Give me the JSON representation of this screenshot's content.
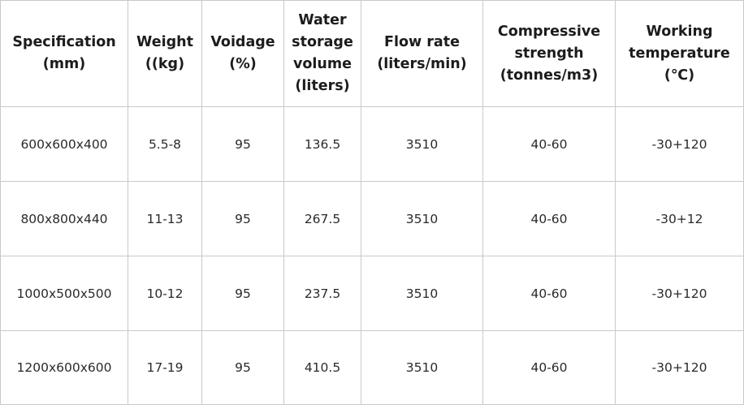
{
  "table": {
    "headers": [
      [
        "Specification",
        "(mm)"
      ],
      [
        "Weight",
        "((kg)"
      ],
      [
        "Voidage",
        "(%)"
      ],
      [
        "Water",
        "storage",
        "volume",
        "(liters)"
      ],
      [
        "Flow rate",
        "(liters/min)"
      ],
      [
        "Compressive",
        "strength",
        "(tonnes/m3)"
      ],
      [
        "Working",
        "temperature",
        "(℃)"
      ]
    ],
    "rows": [
      [
        "600x600x400",
        "5.5-8",
        "95",
        "136.5",
        "3510",
        "40-60",
        "-30+120"
      ],
      [
        "800x800x440",
        "11-13",
        "95",
        "267.5",
        "3510",
        "40-60",
        "-30+12"
      ],
      [
        "1000x500x500",
        "10-12",
        "95",
        "237.5",
        "3510",
        "40-60",
        "-30+120"
      ],
      [
        "1200x600x600",
        "17-19",
        "95",
        "410.5",
        "3510",
        "40-60",
        "-30+120"
      ]
    ]
  }
}
